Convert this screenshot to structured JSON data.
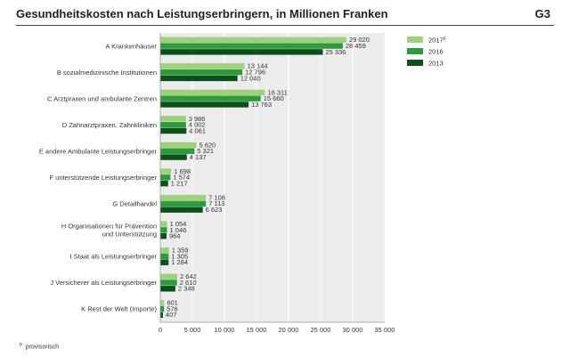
{
  "header": {
    "title": "Gesundheitskosten nach Leistungserbringern, in Millionen Franken",
    "code": "G3"
  },
  "footnote": {
    "mark": "p",
    "text": "provisorisch"
  },
  "chart_data": {
    "type": "bar",
    "orientation": "horizontal",
    "title": "Gesundheitskosten nach Leistungserbringern, in Millionen Franken",
    "categories": [
      [
        "A Krankenhäuser"
      ],
      [
        "B sozialmedizinische Institutionen"
      ],
      [
        "C Arztpraxen und ambulante Zentren"
      ],
      [
        "D Zahnarztpraxen, Zahnkliniken"
      ],
      [
        "E andere Ambulante Leistungserbringer"
      ],
      [
        "F unterstützende Leistungserbringer"
      ],
      [
        "G Detailhandel"
      ],
      [
        "H Organisationen für Prävention",
        "und Unterstützung"
      ],
      [
        "I Staat als Leistungserbringer"
      ],
      [
        "J Versicherer als Leistungserbringer"
      ],
      [
        "K Rest der Welt (Importe)"
      ]
    ],
    "series": [
      {
        "name": "2017p",
        "color": "#9fd07e",
        "values": [
          29020,
          13144,
          16311,
          3986,
          5620,
          1698,
          7108,
          1054,
          1359,
          2642,
          601
        ],
        "labels": [
          "29 020",
          "13 144",
          "16 311",
          "3 986",
          "5 620",
          "1 698",
          "7 108",
          "1 054",
          "1 359",
          "2 642",
          "601"
        ]
      },
      {
        "name": "2016",
        "color": "#2e9a3c",
        "values": [
          28459,
          12796,
          15660,
          4002,
          5321,
          1574,
          7113,
          1046,
          1305,
          2610,
          576
        ],
        "labels": [
          "28 459",
          "12 796",
          "15 660",
          "4 002",
          "5 321",
          "1 574",
          "7 113",
          "1 046",
          "1 305",
          "2 610",
          "576"
        ]
      },
      {
        "name": "2013",
        "color": "#0c4f1c",
        "values": [
          25336,
          12040,
          13763,
          4061,
          4137,
          1217,
          6623,
          964,
          1284,
          2348,
          407
        ],
        "labels": [
          "25 336",
          "12 040",
          "13 763",
          "4 061",
          "4 137",
          "1 217",
          "6 623",
          "964",
          "1 284",
          "2 348",
          "407"
        ]
      }
    ],
    "legend": [
      {
        "label": "2017",
        "sup": "p",
        "color": "#9fd07e"
      },
      {
        "label": "2016",
        "sup": "",
        "color": "#2e9a3c"
      },
      {
        "label": "2013",
        "sup": "",
        "color": "#0c4f1c"
      }
    ],
    "legend_position": "top-right",
    "xlim": [
      0,
      35000
    ],
    "xticks": [
      0,
      5000,
      10000,
      15000,
      20000,
      25000,
      30000,
      35000
    ],
    "xtick_labels": [
      "0",
      "5 000",
      "10 000",
      "15 000",
      "20 000",
      "25 000",
      "30 000",
      "35 000"
    ],
    "grid": true,
    "plot_background": "#ececec"
  }
}
